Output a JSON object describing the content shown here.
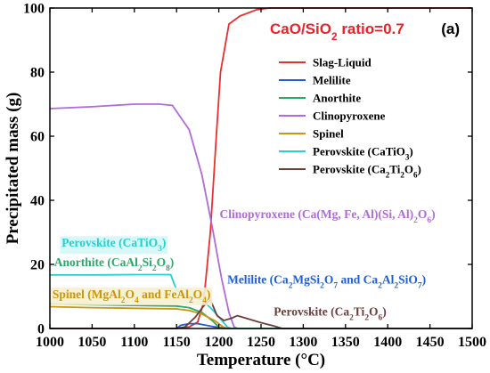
{
  "chart_data": {
    "type": "line",
    "title": "CaO/SiO",
    "title_sub": "2",
    "title_tail": " ratio=0.7",
    "panel_label": "(a)",
    "title_color": "#e8232a",
    "xlabel": "Temperature (°C)",
    "ylabel": "Precipitated mass (g)",
    "xlim": [
      1000,
      1500
    ],
    "ylim": [
      0,
      100
    ],
    "x_ticks": [
      1000,
      1050,
      1100,
      1150,
      1200,
      1250,
      1300,
      1350,
      1400,
      1450,
      1500
    ],
    "y_ticks": [
      0,
      20,
      40,
      60,
      80,
      100
    ],
    "grid": false,
    "legend_position": "top-right",
    "series": [
      {
        "name": "Slag-Liquid",
        "color": "#e8312e",
        "label_parts": [
          [
            "Slag-Liquid",
            ""
          ]
        ],
        "points": [
          [
            1000,
            0
          ],
          [
            1150,
            0
          ],
          [
            1165,
            0.5
          ],
          [
            1175,
            2
          ],
          [
            1182,
            8
          ],
          [
            1190,
            30
          ],
          [
            1197,
            60
          ],
          [
            1202,
            80
          ],
          [
            1212,
            95
          ],
          [
            1225,
            97.5
          ],
          [
            1245,
            99.5
          ],
          [
            1260,
            100
          ],
          [
            1500,
            100
          ]
        ]
      },
      {
        "name": "Melilite",
        "color": "#1f5fd1",
        "label_parts": [
          [
            "Melilite",
            ""
          ]
        ],
        "points": [
          [
            1000,
            0
          ],
          [
            1150,
            0
          ],
          [
            1155,
            1
          ],
          [
            1165,
            1.5
          ],
          [
            1175,
            1.5
          ],
          [
            1185,
            1
          ],
          [
            1195,
            0.5
          ],
          [
            1205,
            0.2
          ],
          [
            1215,
            0
          ],
          [
            1500,
            0
          ]
        ]
      },
      {
        "name": "Anorthite",
        "color": "#2ca86a",
        "label_parts": [
          [
            "Anorthite",
            ""
          ]
        ],
        "points": [
          [
            1000,
            7.7
          ],
          [
            1050,
            7.4
          ],
          [
            1100,
            7.2
          ],
          [
            1150,
            7.0
          ],
          [
            1165,
            6.5
          ],
          [
            1180,
            5
          ],
          [
            1192,
            2.5
          ],
          [
            1200,
            0.5
          ],
          [
            1205,
            0
          ],
          [
            1500,
            0
          ]
        ]
      },
      {
        "name": "Clinopyroxene",
        "color": "#b06bd8",
        "label_parts": [
          [
            "Clinopyroxene",
            ""
          ]
        ],
        "points": [
          [
            1000,
            68.6
          ],
          [
            1050,
            69.2
          ],
          [
            1100,
            70.0
          ],
          [
            1130,
            70.0
          ],
          [
            1145,
            69.6
          ],
          [
            1165,
            62
          ],
          [
            1180,
            48
          ],
          [
            1192,
            32
          ],
          [
            1203,
            16
          ],
          [
            1212,
            5
          ],
          [
            1218,
            0.5
          ],
          [
            1222,
            0
          ],
          [
            1500,
            0
          ]
        ]
      },
      {
        "name": "Spinel",
        "color": "#c9960c",
        "label_parts": [
          [
            "Spinel",
            ""
          ]
        ],
        "points": [
          [
            1000,
            6.8
          ],
          [
            1050,
            6.5
          ],
          [
            1100,
            6.3
          ],
          [
            1150,
            6.1
          ],
          [
            1165,
            5.6
          ],
          [
            1180,
            4.5
          ],
          [
            1195,
            2.5
          ],
          [
            1205,
            0.5
          ],
          [
            1210,
            0
          ],
          [
            1500,
            0
          ]
        ]
      },
      {
        "name": "Perovskite (CaTiO3)",
        "color": "#26cfcf",
        "label_parts": [
          [
            "Perovskite (CaTiO",
            ""
          ],
          [
            "3",
            "sub"
          ],
          [
            ")",
            ""
          ]
        ],
        "points": [
          [
            1000,
            16.7
          ],
          [
            1050,
            16.7
          ],
          [
            1100,
            16.8
          ],
          [
            1143,
            16.8
          ],
          [
            1150,
            12
          ],
          [
            1165,
            10
          ],
          [
            1180,
            9
          ],
          [
            1192,
            6
          ],
          [
            1202,
            3
          ],
          [
            1210,
            0.5
          ],
          [
            1215,
            0
          ],
          [
            1500,
            0
          ]
        ]
      },
      {
        "name": "Perovskite (Ca2Ti2O6)",
        "color": "#6b3f3a",
        "label_parts": [
          [
            "Perovskite (Ca",
            ""
          ],
          [
            "2",
            "sub"
          ],
          [
            "Ti",
            ""
          ],
          [
            "2",
            "sub"
          ],
          [
            "O",
            ""
          ],
          [
            "6",
            "sub"
          ],
          [
            ")",
            ""
          ]
        ],
        "points": [
          [
            1000,
            0
          ],
          [
            1150,
            0
          ],
          [
            1160,
            0.5
          ],
          [
            1172,
            3.5
          ],
          [
            1182,
            7
          ],
          [
            1190,
            9
          ],
          [
            1198,
            4
          ],
          [
            1206,
            2.5
          ],
          [
            1215,
            3.2
          ],
          [
            1222,
            4
          ],
          [
            1235,
            3
          ],
          [
            1250,
            1.8
          ],
          [
            1265,
            0.8
          ],
          [
            1275,
            0
          ],
          [
            1500,
            0
          ]
        ]
      }
    ],
    "annotations": [
      {
        "name": "clinopyroxene",
        "color": "#b06bd8",
        "x": 1201,
        "y": 34.5,
        "parts": [
          [
            "Clinopyroxene (Ca(Mg, Fe, Al)(Si, Al)",
            ""
          ],
          [
            "2",
            "sub"
          ],
          [
            "O",
            ""
          ],
          [
            "6",
            "sub"
          ],
          [
            ")",
            ""
          ]
        ]
      },
      {
        "name": "perovskite-catio3",
        "color": "#26cfcf",
        "x": 1014,
        "y": 25.5,
        "box": "#d4f7f7",
        "parts": [
          [
            "Perovskite (CaTiO",
            ""
          ],
          [
            "3",
            "sub"
          ],
          [
            ")",
            ""
          ]
        ]
      },
      {
        "name": "anorthite",
        "color": "#2ca86a",
        "x": 1005,
        "y": 19.5,
        "parts": [
          [
            "Anorthite (CaAl",
            ""
          ],
          [
            "2",
            "sub"
          ],
          [
            "Si",
            ""
          ],
          [
            "2",
            "sub"
          ],
          [
            "O",
            ""
          ],
          [
            "8",
            "sub"
          ],
          [
            ")",
            ""
          ]
        ]
      },
      {
        "name": "melilite",
        "color": "#1f5fd1",
        "x": 1210,
        "y": 14,
        "parts": [
          [
            "Melilite (Ca",
            ""
          ],
          [
            "2",
            "sub"
          ],
          [
            "MgSi",
            ""
          ],
          [
            "2",
            "sub"
          ],
          [
            "O",
            ""
          ],
          [
            "7",
            "sub"
          ],
          [
            " and Ca",
            ""
          ],
          [
            "2",
            "sub"
          ],
          [
            "Al",
            ""
          ],
          [
            "2",
            "sub"
          ],
          [
            "SiO",
            ""
          ],
          [
            "7",
            "sub"
          ],
          [
            ")",
            ""
          ]
        ]
      },
      {
        "name": "spinel",
        "color": "#c9960c",
        "x": 1003,
        "y": 9.5,
        "box": "#f6efd2",
        "parts": [
          [
            "Spinel (MgAl",
            ""
          ],
          [
            "2",
            "sub"
          ],
          [
            "O",
            ""
          ],
          [
            "4",
            "sub"
          ],
          [
            " and FeAl",
            ""
          ],
          [
            "2",
            "sub"
          ],
          [
            "O",
            ""
          ],
          [
            "4",
            "sub"
          ],
          [
            ")",
            ""
          ]
        ]
      },
      {
        "name": "perovskite-ca2ti2o6",
        "color": "#6b3f3a",
        "x": 1265,
        "y": 4,
        "parts": [
          [
            "Perovskite (Ca",
            ""
          ],
          [
            "2",
            "sub"
          ],
          [
            "Ti",
            ""
          ],
          [
            "2",
            "sub"
          ],
          [
            "O",
            ""
          ],
          [
            "6",
            "sub"
          ],
          [
            ")",
            ""
          ]
        ]
      }
    ]
  }
}
